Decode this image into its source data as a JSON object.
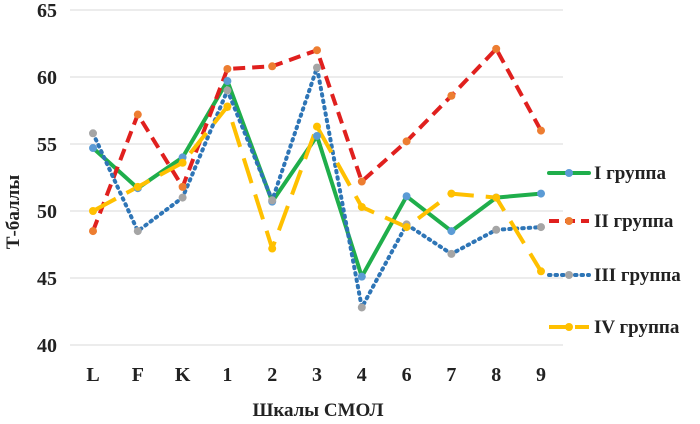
{
  "chart_data": {
    "type": "line",
    "title": "",
    "xlabel": "Шкалы СМОЛ",
    "ylabel": "Т-баллы",
    "ylim": [
      40,
      65
    ],
    "yticks": [
      "40",
      "45",
      "50",
      "55",
      "60",
      "65"
    ],
    "grid": true,
    "legend_position": "right",
    "categories": [
      "L",
      "F",
      "K",
      "1",
      "2",
      "3",
      "4",
      "6",
      "7",
      "8",
      "9"
    ],
    "series": [
      {
        "name": "I группа",
        "color": "#1fae4b",
        "marker_color": "#5b9bd5",
        "line_style": "solid",
        "values": [
          54.7,
          51.7,
          54.0,
          59.7,
          50.7,
          55.6,
          45.1,
          51.1,
          48.5,
          51.0,
          51.3
        ]
      },
      {
        "name": "II группа",
        "color": "#e0201e",
        "marker_color": "#ed7d31",
        "line_style": "dashed",
        "values": [
          48.5,
          57.2,
          51.8,
          60.6,
          60.8,
          62.0,
          52.2,
          55.2,
          58.6,
          62.1,
          56.0
        ]
      },
      {
        "name": "III группа",
        "color": "#2e75b6",
        "marker_color": "#a5a5a5",
        "line_style": "dotted",
        "values": [
          55.8,
          48.5,
          51.0,
          59.0,
          50.8,
          60.7,
          42.8,
          49.0,
          46.8,
          48.6,
          48.8
        ]
      },
      {
        "name": "IV группа",
        "color": "#ffc000",
        "marker_color": "#ffc000",
        "line_style": "long-dash",
        "values": [
          50.0,
          51.8,
          53.6,
          57.8,
          47.2,
          56.3,
          50.3,
          48.8,
          51.3,
          51.0,
          45.5
        ]
      }
    ]
  }
}
